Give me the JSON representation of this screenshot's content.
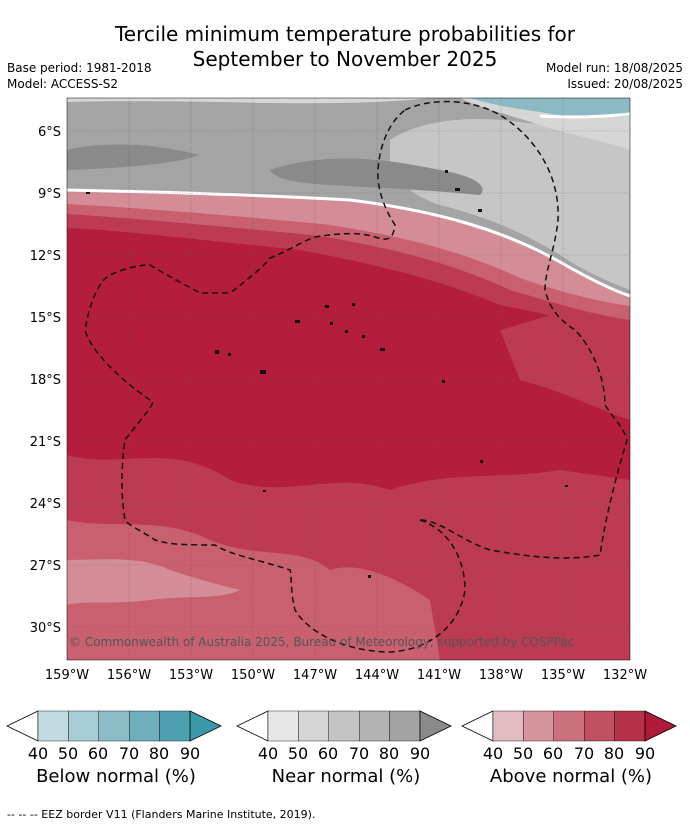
{
  "title_line1": "Tercile minimum temperature probabilities for",
  "title_line2": "September to November 2025",
  "base_period": "Base period: 1981-2018",
  "model": "Model: ACCESS-S2",
  "model_run": "Model run: 18/08/2025",
  "issued": "Issued: 20/08/2025",
  "map": {
    "lat_labels": [
      "6°S",
      "9°S",
      "12°S",
      "15°S",
      "18°S",
      "21°S",
      "24°S",
      "27°S",
      "30°S"
    ],
    "lon_labels": [
      "159°W",
      "156°W",
      "153°W",
      "150°W",
      "147°W",
      "144°W",
      "141°W",
      "138°W",
      "135°W",
      "132°W"
    ],
    "copyright": "© Commonwealth of Australia 2025, Bureau of Meteorology, supported by COSPPac",
    "colors": {
      "above_90": "#b41e3c",
      "above_80": "#bc3a52",
      "above_70": "#c9606f",
      "above_60": "#d48d96",
      "above_50": "#e0b6bc",
      "near_50": "#d6d6d6",
      "near_60": "#c6c6c6",
      "near_70": "#b5b5b5",
      "near_80": "#a4a4a4",
      "near_90": "#8a8a8a",
      "below_60": "#8cbac4"
    }
  },
  "legends": [
    {
      "title": "Below normal (%)",
      "ticks": [
        "40",
        "50",
        "60",
        "70",
        "80",
        "90"
      ],
      "colors": [
        "#ffffff",
        "#c1dbe0",
        "#a6cdd5",
        "#8bbcc8",
        "#6eaebd",
        "#4ea0b1",
        "#3a9aab"
      ]
    },
    {
      "title": "Near normal (%)",
      "ticks": [
        "40",
        "50",
        "60",
        "70",
        "80",
        "90"
      ],
      "colors": [
        "#ffffff",
        "#e6e6e6",
        "#d5d5d5",
        "#c4c4c4",
        "#b3b3b3",
        "#a3a3a3",
        "#8a8a8a"
      ]
    },
    {
      "title": "Above normal (%)",
      "ticks": [
        "40",
        "50",
        "60",
        "70",
        "80",
        "90"
      ],
      "colors": [
        "#ffffff",
        "#e2bcc1",
        "#d6959d",
        "#cb717d",
        "#c0505f",
        "#b63249",
        "#b0193a"
      ]
    }
  ],
  "footer": "-- -- -- EEZ border V11 (Flanders Marine Institute, 2019)."
}
